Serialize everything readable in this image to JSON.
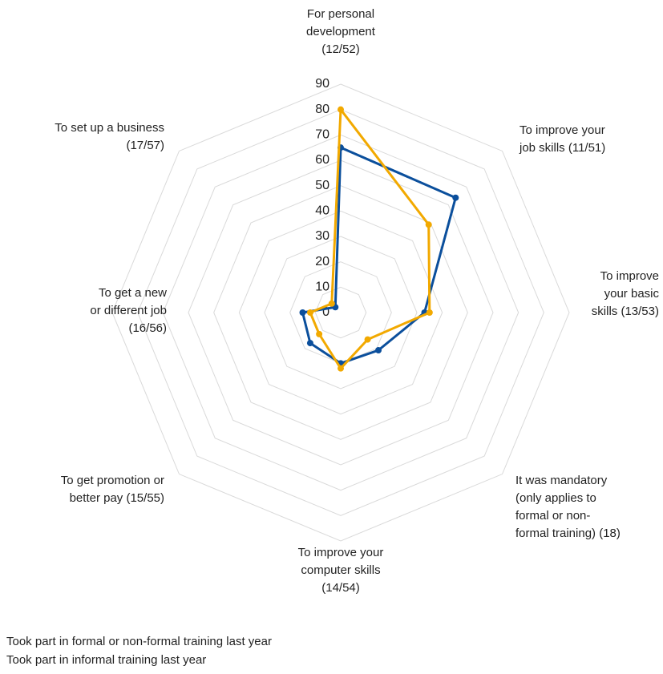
{
  "chart_data": {
    "type": "radar",
    "categories": [
      "For personal\ndevelopment\n(12/52)",
      "To improve your\njob skills (11/51)",
      "To improve\nyour basic\nskills (13/53)",
      "It was mandatory\n(only applies to\nformal or non-\nformal training) (18)",
      "To improve your\ncomputer skills\n(14/54)",
      "To get promotion or\nbetter pay (15/55)",
      "To get a new\nor different job\n(16/56)",
      "To set up a business\n(17/57)"
    ],
    "series": [
      {
        "name": "Took part in formal or non-formal training last year",
        "color": "#0b4f9c",
        "values": [
          65,
          64,
          33,
          21,
          20,
          17,
          15,
          3
        ]
      },
      {
        "name": "Took part in informal training last year",
        "color": "#f2a900",
        "values": [
          80,
          49,
          35,
          15,
          22,
          12,
          12,
          5
        ]
      }
    ],
    "ylim": [
      0,
      90
    ],
    "yticks": [
      0,
      10,
      20,
      30,
      40,
      50,
      60,
      70,
      80,
      90
    ],
    "grid": true
  }
}
